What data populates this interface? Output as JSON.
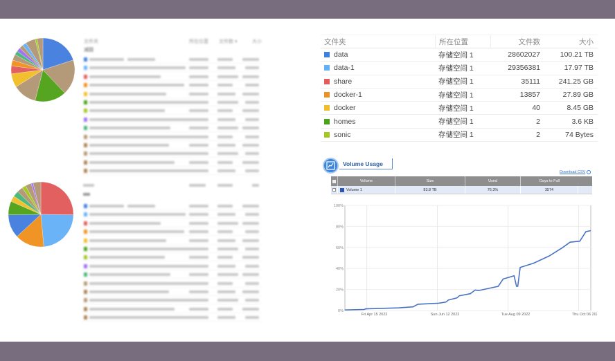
{
  "top_table": {
    "headers": [
      "文件夹",
      "所在位置",
      "文件数 ▾",
      "大小"
    ],
    "section": "减固",
    "row_colors": [
      "#4a82e0",
      "#6ab3f7",
      "#e36060",
      "#ef9425",
      "#f2c02c",
      "#4ea41e",
      "#a4c827",
      "#a173f2",
      "#4cba7c",
      "#b89c7a",
      "#b08a5c",
      "#b89c7a",
      "#b08a5c",
      "#b08a5c"
    ]
  },
  "bottom_table": {
    "row_colors": [
      "#4a82e0",
      "#6ab3f7",
      "#e36060",
      "#ef9425",
      "#f2c02c",
      "#4ea41e",
      "#a4c827",
      "#a173f2",
      "#4cba7c",
      "#b89c7a",
      "#b08a5c",
      "#b89c7a",
      "#b08a5c",
      "#b08a5c"
    ]
  },
  "pie_top": {
    "slices": [
      {
        "v": 20,
        "c": "#4a82e0"
      },
      {
        "v": 18,
        "c": "#b59a7a"
      },
      {
        "v": 16,
        "c": "#56a520"
      },
      {
        "v": 12,
        "c": "#b59a7a"
      },
      {
        "v": 7,
        "c": "#f2c02c"
      },
      {
        "v": 4,
        "c": "#e36060"
      },
      {
        "v": 3,
        "c": "#ef9425"
      },
      {
        "v": 3,
        "c": "#b59a7a"
      },
      {
        "v": 2,
        "c": "#4cba7c"
      },
      {
        "v": 2,
        "c": "#a173f2"
      },
      {
        "v": 2,
        "c": "#b59a7a"
      },
      {
        "v": 2,
        "c": "#6ab3f7"
      },
      {
        "v": 5,
        "c": "#b59a7a"
      },
      {
        "v": 1,
        "c": "#a4c827"
      },
      {
        "v": 3,
        "c": "#b59a7a"
      }
    ]
  },
  "pie_bottom": {
    "slices": [
      {
        "v": 26,
        "c": "#e36060"
      },
      {
        "v": 24,
        "c": "#6ab3f7"
      },
      {
        "v": 15,
        "c": "#ef9425"
      },
      {
        "v": 12,
        "c": "#4a82e0"
      },
      {
        "v": 7,
        "c": "#56a520"
      },
      {
        "v": 3,
        "c": "#f2c02c"
      },
      {
        "v": 3,
        "c": "#4cba7c"
      },
      {
        "v": 3,
        "c": "#b59a7a"
      },
      {
        "v": 2,
        "c": "#a4c827"
      },
      {
        "v": 3,
        "c": "#b59a7a"
      },
      {
        "v": 1,
        "c": "#a173f2"
      },
      {
        "v": 4,
        "c": "#b59a7a"
      }
    ]
  },
  "folders": {
    "headers": {
      "name": "文件夹",
      "location": "所在位置",
      "count": "文件数",
      "size": "大小"
    },
    "rows": [
      {
        "name": "data",
        "color": "#3f7fe0",
        "location": "存储空间 1",
        "count": "28602027",
        "size": "100.21 TB"
      },
      {
        "name": "data-1",
        "color": "#64b0f6",
        "location": "存储空间 1",
        "count": "29356381",
        "size": "17.97 TB"
      },
      {
        "name": "share",
        "color": "#e35d5d",
        "location": "存储空间 1",
        "count": "35111",
        "size": "241.25 GB"
      },
      {
        "name": "docker-1",
        "color": "#ec9224",
        "location": "存储空间 1",
        "count": "13857",
        "size": "27.89 GB"
      },
      {
        "name": "docker",
        "color": "#f0be2a",
        "location": "存储空间 1",
        "count": "40",
        "size": "8.45 GB"
      },
      {
        "name": "homes",
        "color": "#4ba21b",
        "location": "存储空间 1",
        "count": "2",
        "size": "3.6 KB"
      },
      {
        "name": "sonic",
        "color": "#a3c826",
        "location": "存储空间 1",
        "count": "2",
        "size": "74 Bytes"
      }
    ]
  },
  "volume": {
    "tab_label": "Volume Usage",
    "download_label": "Download CSV",
    "headers": [
      "Volume",
      "Size",
      "Used",
      "Days to Full"
    ],
    "row": {
      "name": "Volume 1",
      "size": "83.8 TB",
      "used": "76.3%",
      "days": "3574",
      "color": "#2f56b0"
    }
  },
  "chart_data": {
    "type": "line",
    "x_range": [
      "2022-03-28",
      "2022-10-16"
    ],
    "ylim": [
      0,
      100
    ],
    "yticks": [
      "0%",
      "20%",
      "40%",
      "60%",
      "80%",
      "100%"
    ],
    "xticks": [
      {
        "date": "2022-04-15",
        "label": "Fri Apr 15 2022"
      },
      {
        "date": "2022-06-12",
        "label": "Sun Jun 12 2022"
      },
      {
        "date": "2022-08-09",
        "label": "Tue Aug 09 2022"
      },
      {
        "date": "2022-10-06",
        "label": "Thu Oct 06 2022"
      }
    ],
    "grid": true,
    "color": "#4a72c4",
    "series": [
      {
        "name": "Volume 1",
        "points": [
          [
            "2022-03-28",
            0.5
          ],
          [
            "2022-04-13",
            1
          ],
          [
            "2022-04-14",
            1.6
          ],
          [
            "2022-05-11",
            2.5
          ],
          [
            "2022-05-23",
            3.5
          ],
          [
            "2022-05-27",
            6
          ],
          [
            "2022-06-13",
            7
          ],
          [
            "2022-06-19",
            8
          ],
          [
            "2022-06-21",
            10
          ],
          [
            "2022-06-28",
            12
          ],
          [
            "2022-06-30",
            14
          ],
          [
            "2022-07-09",
            16
          ],
          [
            "2022-07-13",
            19.5
          ],
          [
            "2022-07-16",
            19
          ],
          [
            "2022-08-01",
            23
          ],
          [
            "2022-08-05",
            30
          ],
          [
            "2022-08-14",
            33
          ],
          [
            "2022-08-16",
            23
          ],
          [
            "2022-08-17",
            23
          ],
          [
            "2022-08-19",
            41
          ],
          [
            "2022-08-30",
            45
          ],
          [
            "2022-09-12",
            52
          ],
          [
            "2022-09-23",
            60
          ],
          [
            "2022-09-29",
            65
          ],
          [
            "2022-10-07",
            66
          ],
          [
            "2022-10-12",
            75
          ],
          [
            "2022-10-16",
            76
          ]
        ]
      }
    ]
  }
}
